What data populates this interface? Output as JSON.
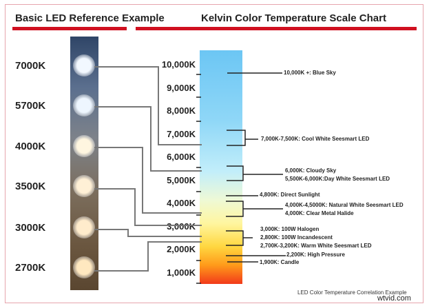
{
  "left_title": "Basic LED Reference Example",
  "right_title": "Kelvin Color Temperature Scale Chart",
  "leds": [
    {
      "label": "7000K",
      "color": "#f2f8ff"
    },
    {
      "label": "5700K",
      "color": "#eef6ff"
    },
    {
      "label": "4000K",
      "color": "#fff6e0"
    },
    {
      "label": "3500K",
      "color": "#fff0d6"
    },
    {
      "label": "3000K",
      "color": "#ffeccc"
    },
    {
      "label": "2700K",
      "color": "#ffe8c0"
    }
  ],
  "scale_ticks": [
    "10,000K",
    "9,000K",
    "8,000K",
    "7,000K",
    "6,000K",
    "5,000K",
    "4,000K",
    "3,000K",
    "2,000K",
    "1,000K"
  ],
  "annotations": {
    "blue_sky": "10,000K +: Blue Sky",
    "cool_white": "7,000K-7,500K: Cool White Seesmart LED",
    "cloudy": "6,000K: Cloudy Sky",
    "day_white": "5,500K-6,000K:Day White Seesmart LED",
    "sunlight": "4,800K: Direct Sunlight",
    "natural_white": "4,000K-4,5000K: Natural White Seesmart LED",
    "metal_halide": "4,000K: Clear Metal Halide",
    "halogen": "3,000K: 100W Halogen",
    "incandescent": "2,800K: 100W Incandescent",
    "warm_white": "2,700K-3,200K: Warm White Seesmart LED",
    "high_pressure": "2,200K: High Pressure",
    "candle": "1,900K: Candle"
  },
  "caption": "LED Color Temperature Correlation Example",
  "watermark": "wtvid.com",
  "colors": {
    "accent": "#d01020",
    "connector": "#777777"
  }
}
